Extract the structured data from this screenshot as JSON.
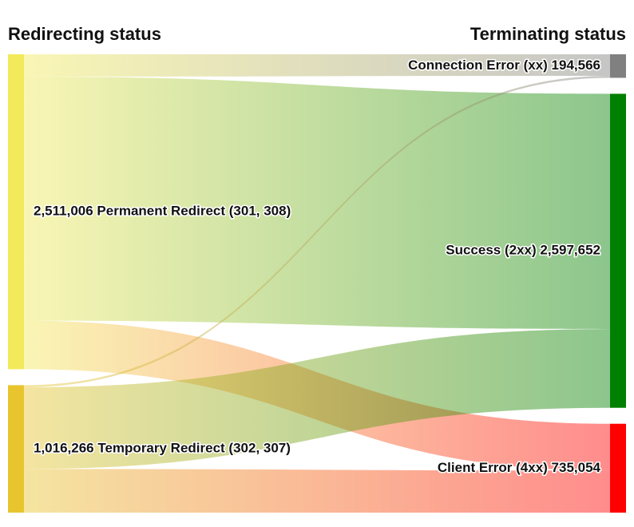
{
  "chart_data": {
    "type": "sankey",
    "title": "",
    "headers": {
      "left": "Redirecting status",
      "right": "Terminating status"
    },
    "sources": [
      {
        "id": "perm",
        "name": "Permanent Redirect (301, 308)",
        "value": 2511006,
        "value_label": "2,511,006",
        "color": "#f2ea5a"
      },
      {
        "id": "temp",
        "name": "Temporary Redirect (302, 307)",
        "value": 1016266,
        "value_label": "1,016,266",
        "color": "#e8c52e"
      }
    ],
    "targets": [
      {
        "id": "conn",
        "name": "Connection Error (xx)",
        "value": 194566,
        "value_label": "194,566",
        "color": "#808080"
      },
      {
        "id": "succ",
        "name": "Success (2xx)",
        "value": 2597652,
        "value_label": "2,597,652",
        "color": "#008000"
      },
      {
        "id": "client",
        "name": "Client Error (4xx)",
        "value": 735054,
        "value_label": "735,054",
        "color": "#ff0000"
      }
    ],
    "links": [
      {
        "source": "perm",
        "target": "conn",
        "value": 178000
      },
      {
        "source": "perm",
        "target": "succ",
        "value": 1946000
      },
      {
        "source": "perm",
        "target": "client",
        "value": 387006
      },
      {
        "source": "temp",
        "target": "conn",
        "value": 16566
      },
      {
        "source": "temp",
        "target": "succ",
        "value": 651652
      },
      {
        "source": "temp",
        "target": "client",
        "value": 348048
      }
    ]
  }
}
